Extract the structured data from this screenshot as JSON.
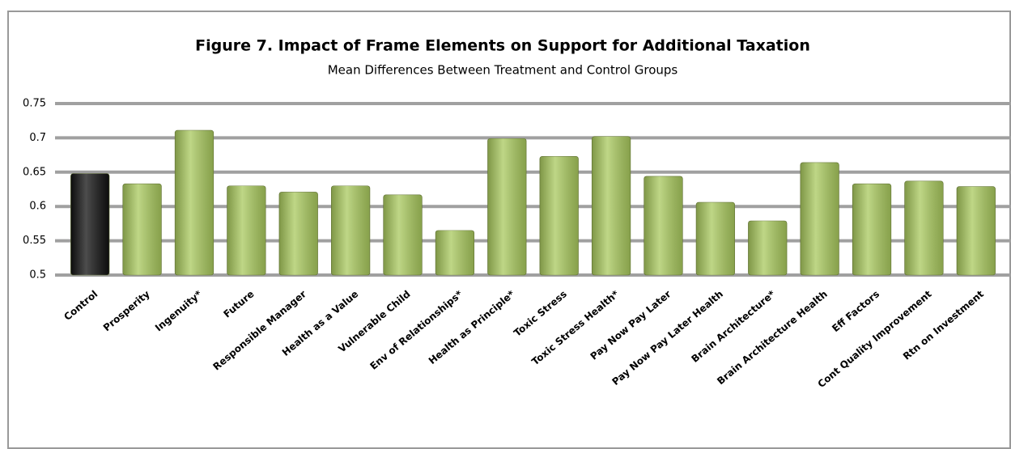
{
  "chart_data": {
    "type": "bar",
    "title": "Figure 7.  Impact of Frame Elements on Support for Additional Taxation",
    "subtitle": "Mean Differences Between Treatment and Control Groups",
    "categories": [
      "Control",
      "Prosperity",
      "Ingenuity*",
      "Future",
      "Responsible Manager",
      "Health as a Value",
      "Vulnerable Child",
      "Env of Relationships*",
      "Health as Principle*",
      "Toxic Stress",
      "Toxic Stress Health*",
      "Pay Now Pay Later",
      "Pay Now Pay Later Health",
      "Brain Architecture*",
      "Brain Architecture Health",
      "Eff Factors",
      "Cont Quality Improvement",
      "Rtn on Investment"
    ],
    "values": [
      0.648,
      0.633,
      0.711,
      0.63,
      0.621,
      0.63,
      0.617,
      0.565,
      0.699,
      0.673,
      0.702,
      0.644,
      0.606,
      0.579,
      0.664,
      0.633,
      0.637,
      0.629
    ],
    "colors": [
      "#111111",
      "#a9c95e",
      "#a9c95e",
      "#a9c95e",
      "#a9c95e",
      "#a9c95e",
      "#a9c95e",
      "#a9c95e",
      "#a9c95e",
      "#a9c95e",
      "#a9c95e",
      "#a9c95e",
      "#a9c95e",
      "#a9c95e",
      "#a9c95e",
      "#a9c95e",
      "#a9c95e",
      "#a9c95e"
    ],
    "ylim": [
      0.5,
      0.75
    ],
    "yticks": [
      0.5,
      0.55,
      0.6,
      0.65,
      0.7,
      0.75
    ],
    "grid": true
  }
}
